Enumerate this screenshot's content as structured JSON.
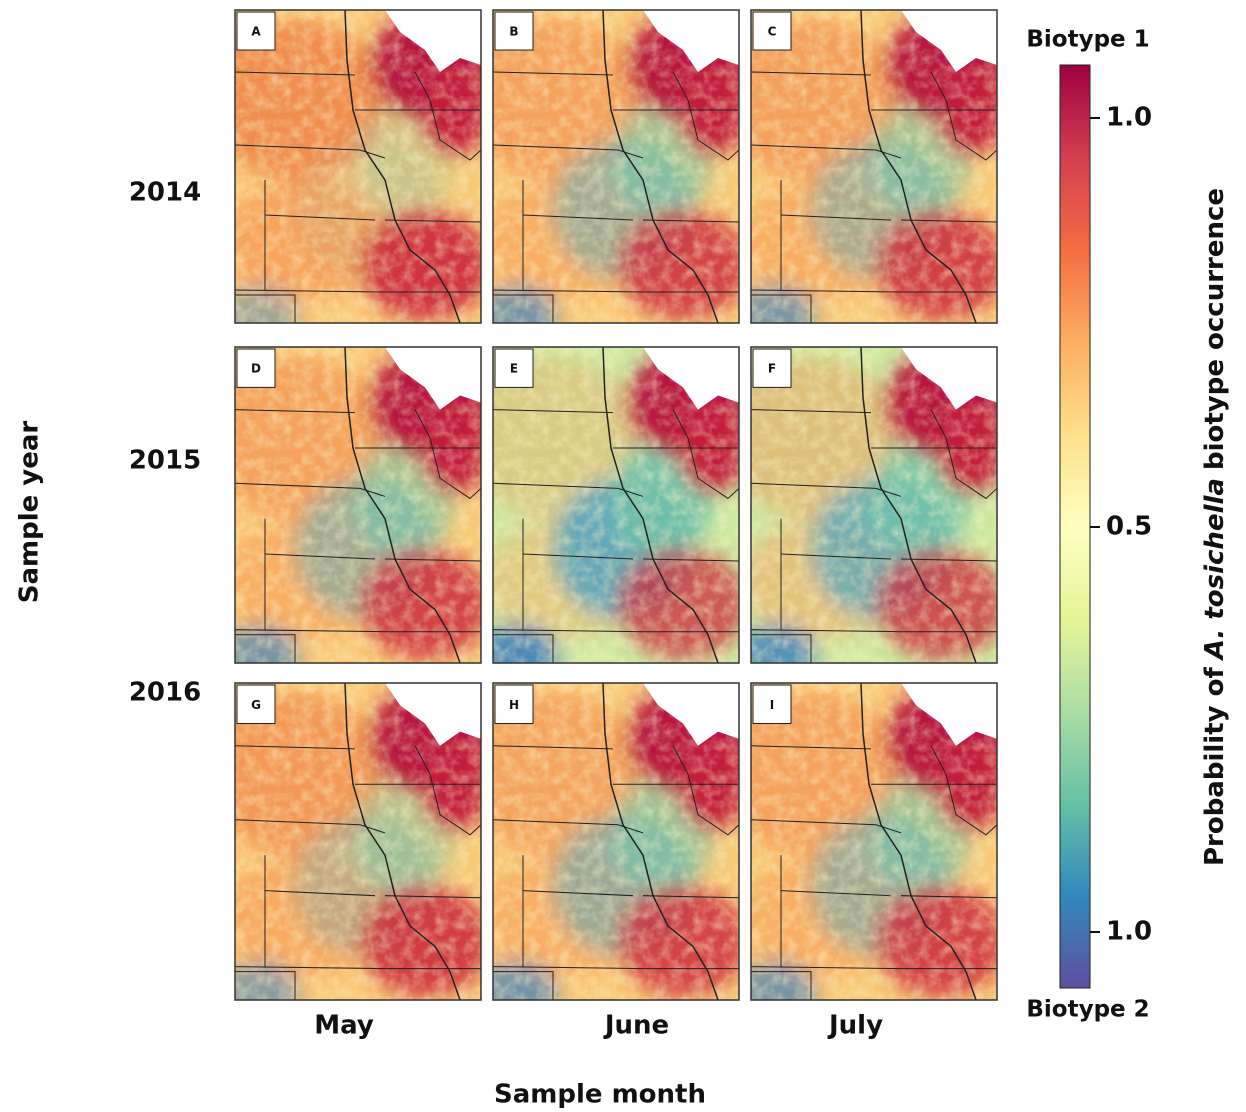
{
  "panels": [
    "A",
    "B",
    "C",
    "D",
    "E",
    "F",
    "G",
    "H",
    "I"
  ],
  "rows": [
    "2014",
    "2015",
    "2016"
  ],
  "columns": [
    "May",
    "June",
    "July"
  ],
  "y_axis_title": "Sample year",
  "x_axis_title": "Sample month",
  "colorbar": {
    "top_label": "Biotype 1",
    "bottom_label": "Biotype 2",
    "ticks": [
      "1.0",
      "0.5",
      "1.0"
    ],
    "title": {
      "prefix": "Probability of",
      "italic": "A. tosichella",
      "suffix": "biotype occurrence"
    }
  }
}
